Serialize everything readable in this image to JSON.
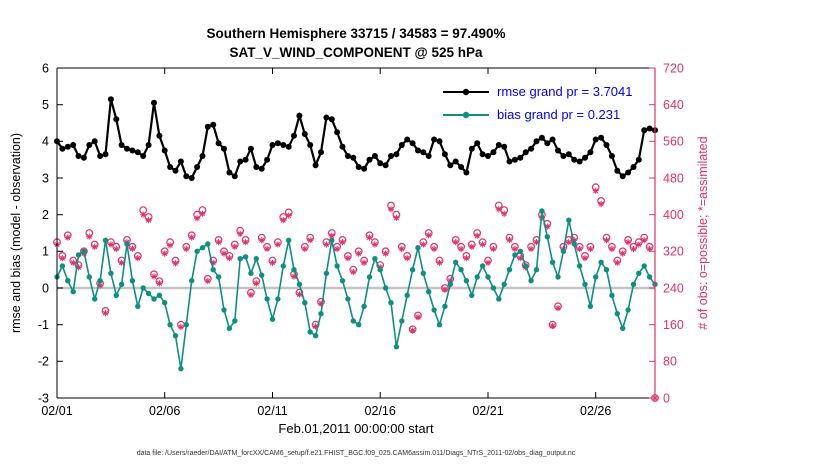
{
  "figure": {
    "caption": "data file: /Users/raeder/DAI/ATM_forcXX/CAM6_setup/f.e21.FHIST_BGC.f09_025.CAM6assim.011/Diags_NTrS_2011-02/obs_diag_output.nc",
    "colors": {
      "rmse": "#000000",
      "bias": "#0e8f80",
      "obs": "#e0326e",
      "legend_text": "#0000ff",
      "zero_line": "#c4c4c4",
      "axis": "#000000",
      "right_axis": "#e0326e"
    }
  },
  "chart_data": {
    "type": "line",
    "title": "Southern Hemisphere 33715 / 34583 = 97.490%",
    "subtitle": "SAT_V_WIND_COMPONENT @ 525 hPa",
    "xlabel": "Feb.01,2011 00:00:00 start",
    "stats": {
      "assimilated_total": 33715,
      "possible_total": 34583,
      "percent_assimilated": "97.490%",
      "rmse_grand": 3.7041,
      "bias_grand": 0.231
    },
    "x_axis": {
      "unit": "days since 2011-02-01 00:00 (6-hourly bins)",
      "start": 0,
      "step": 0.25,
      "count": 112,
      "range": [
        0,
        27.75
      ],
      "ticks": [
        {
          "t": 0,
          "label": "02/01"
        },
        {
          "t": 5,
          "label": "02/06"
        },
        {
          "t": 10,
          "label": "02/11"
        },
        {
          "t": 15,
          "label": "02/16"
        },
        {
          "t": 20,
          "label": "02/21"
        },
        {
          "t": 25,
          "label": "02/26"
        }
      ]
    },
    "y_left": {
      "label": "rmse and bias (model - observation)",
      "range": [
        -3,
        6
      ],
      "ticks": [
        -3,
        -2,
        -1,
        0,
        1,
        2,
        3,
        4,
        5,
        6
      ]
    },
    "y_right": {
      "label": "# of obs: o=possible; *=assimilated",
      "range": [
        0,
        720
      ],
      "ticks": [
        0,
        80,
        160,
        240,
        320,
        400,
        480,
        560,
        640,
        720
      ]
    },
    "zero_line": true,
    "grid": false,
    "legend_position": "top-right-inside",
    "series": [
      {
        "name": "rmse",
        "axis": "left",
        "style": "line+filled-circle",
        "legend": "rmse grand pr = 3.7041",
        "grand": 3.7041,
        "values": [
          4.0,
          3.8,
          3.85,
          3.9,
          3.6,
          3.55,
          3.9,
          4.0,
          3.6,
          3.65,
          5.15,
          4.6,
          3.9,
          3.8,
          3.75,
          3.7,
          3.6,
          3.9,
          5.05,
          4.15,
          3.75,
          3.3,
          3.2,
          3.45,
          3.05,
          3.0,
          3.3,
          3.6,
          4.4,
          4.45,
          3.95,
          3.8,
          3.15,
          3.05,
          3.45,
          3.5,
          3.8,
          3.3,
          3.25,
          3.5,
          3.9,
          3.95,
          3.9,
          3.85,
          4.15,
          4.7,
          4.2,
          3.9,
          3.35,
          3.7,
          4.65,
          4.6,
          4.25,
          3.85,
          3.6,
          3.55,
          3.3,
          3.25,
          3.5,
          3.6,
          3.4,
          3.35,
          3.6,
          3.65,
          3.9,
          4.05,
          3.95,
          3.75,
          3.7,
          3.6,
          4.05,
          4.0,
          3.65,
          3.35,
          3.45,
          3.3,
          3.15,
          3.8,
          3.95,
          3.65,
          3.6,
          3.7,
          3.9,
          3.85,
          3.45,
          3.5,
          3.55,
          3.7,
          3.8,
          4.0,
          4.1,
          3.95,
          4.05,
          3.75,
          3.6,
          3.65,
          3.5,
          3.45,
          3.55,
          3.7,
          4.05,
          4.1,
          3.9,
          3.6,
          3.2,
          3.05,
          3.15,
          3.3,
          3.5,
          4.3,
          4.35,
          4.3
        ]
      },
      {
        "name": "bias",
        "axis": "left",
        "style": "line+filled-circle",
        "legend": "bias grand pr = 0.231",
        "grand": 0.231,
        "values": [
          0.3,
          0.6,
          0.2,
          -0.1,
          0.9,
          1.0,
          0.3,
          -0.3,
          0.2,
          1.3,
          0.4,
          -0.2,
          0.1,
          1.2,
          0.2,
          -0.5,
          0.0,
          -0.15,
          -0.3,
          -0.2,
          -0.4,
          -1.0,
          -1.3,
          -2.2,
          -1.0,
          0.2,
          1.0,
          1.1,
          1.2,
          0.5,
          0.3,
          -0.6,
          -1.1,
          -0.9,
          0.8,
          0.85,
          0.4,
          0.8,
          0.35,
          -0.3,
          -0.85,
          -0.3,
          0.6,
          1.3,
          0.5,
          0.1,
          -0.4,
          -1.2,
          -1.3,
          -0.7,
          0.4,
          1.3,
          0.6,
          0.2,
          -0.3,
          -0.9,
          -1.0,
          -0.5,
          0.3,
          0.8,
          0.5,
          0.0,
          -0.4,
          -1.6,
          -0.9,
          -0.2,
          0.5,
          1.1,
          0.4,
          -0.1,
          -0.6,
          -1.0,
          -0.5,
          0.1,
          0.7,
          0.5,
          0.2,
          -0.2,
          0.3,
          0.6,
          0.3,
          0.0,
          -0.3,
          0.1,
          0.5,
          0.9,
          1.0,
          0.6,
          0.2,
          0.5,
          2.1,
          1.4,
          0.7,
          0.3,
          1.0,
          1.85,
          1.2,
          0.6,
          0.1,
          -0.5,
          0.3,
          0.7,
          0.5,
          -0.2,
          -0.7,
          -1.1,
          -0.6,
          0.1,
          0.4,
          0.6,
          0.3,
          0.1
        ]
      },
      {
        "name": "possible",
        "axis": "right",
        "style": "open-circle",
        "legend": "o=possible",
        "values": [
          340,
          310,
          355,
          300,
          290,
          320,
          360,
          335,
          250,
          190,
          340,
          330,
          300,
          345,
          330,
          310,
          410,
          395,
          270,
          255,
          320,
          340,
          300,
          160,
          330,
          355,
          400,
          410,
          260,
          300,
          345,
          320,
          310,
          335,
          365,
          345,
          230,
          255,
          350,
          330,
          300,
          340,
          395,
          405,
          270,
          230,
          330,
          350,
          160,
          210,
          340,
          360,
          330,
          345,
          310,
          280,
          320,
          300,
          355,
          340,
          290,
          320,
          420,
          400,
          330,
          310,
          150,
          180,
          340,
          360,
          330,
          300,
          240,
          260,
          345,
          330,
          310,
          335,
          360,
          340,
          300,
          330,
          420,
          410,
          350,
          330,
          310,
          290,
          330,
          345,
          400,
          380,
          160,
          200,
          330,
          345,
          350,
          330,
          310,
          330,
          460,
          430,
          350,
          330,
          300,
          320,
          345,
          330,
          340,
          350,
          330,
          0
        ]
      },
      {
        "name": "assimilated",
        "axis": "right",
        "style": "asterisk",
        "legend": "*=assimilated",
        "values": [
          335,
          305,
          350,
          295,
          285,
          315,
          352,
          330,
          245,
          185,
          335,
          325,
          295,
          340,
          326,
          305,
          400,
          388,
          265,
          250,
          315,
          333,
          294,
          155,
          325,
          350,
          392,
          402,
          255,
          295,
          340,
          315,
          305,
          330,
          358,
          340,
          225,
          250,
          344,
          325,
          295,
          335,
          388,
          398,
          265,
          226,
          325,
          344,
          156,
          206,
          335,
          354,
          325,
          340,
          305,
          275,
          315,
          295,
          350,
          335,
          285,
          315,
          412,
          393,
          325,
          305,
          147,
          176,
          335,
          355,
          325,
          295,
          236,
          256,
          340,
          325,
          305,
          330,
          354,
          335,
          295,
          325,
          412,
          402,
          345,
          325,
          305,
          285,
          325,
          340,
          393,
          374,
          157,
          196,
          325,
          340,
          344,
          325,
          305,
          325,
          452,
          423,
          344,
          325,
          295,
          315,
          340,
          325,
          335,
          344,
          325,
          0
        ]
      }
    ]
  }
}
